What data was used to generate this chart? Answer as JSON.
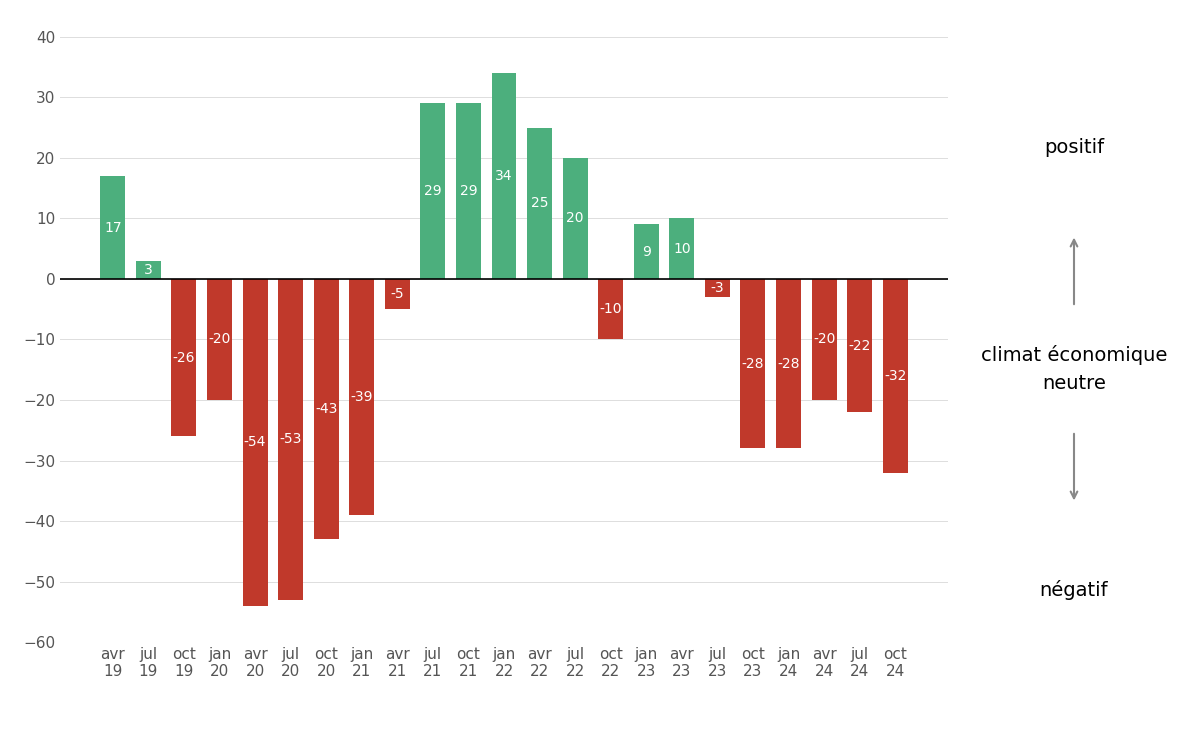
{
  "categories": [
    "avr\n19",
    "jul\n19",
    "oct\n19",
    "jan\n20",
    "avr\n20",
    "jul\n20",
    "oct\n20",
    "jan\n21",
    "avr\n21",
    "jul\n21",
    "oct\n21",
    "jan\n22",
    "avr\n22",
    "jul\n22",
    "oct\n22",
    "jan\n23",
    "avr\n23",
    "jul\n23",
    "oct\n23",
    "jan\n24",
    "avr\n24",
    "jul\n24",
    "oct\n24"
  ],
  "values": [
    17,
    3,
    -26,
    -20,
    -54,
    -53,
    -43,
    -39,
    -5,
    29,
    29,
    34,
    25,
    20,
    -10,
    9,
    10,
    -3,
    -28,
    -28,
    -20,
    -22,
    -32
  ],
  "green_color": "#4caf7d",
  "red_color": "#c0392b",
  "background_color": "#ffffff",
  "ylim": [
    -60,
    40
  ],
  "yticks": [
    -60,
    -50,
    -40,
    -30,
    -20,
    -10,
    0,
    10,
    20,
    30,
    40
  ],
  "legend_positif": "positif",
  "legend_neutre": "climat économique\nneutre",
  "legend_negatif": "négatif",
  "legend_fontsize": 14,
  "bar_label_fontsize": 10,
  "tick_fontsize": 11,
  "arrow_color": "#888888"
}
